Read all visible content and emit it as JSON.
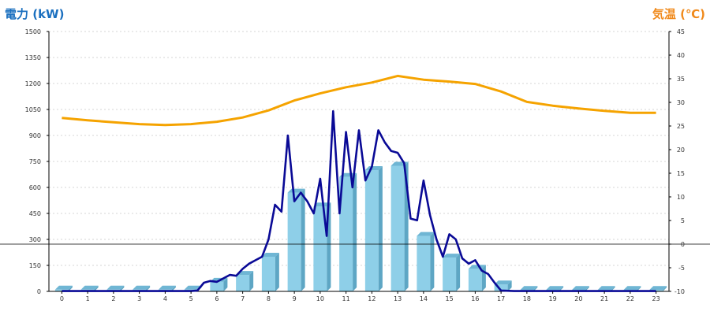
{
  "chart_data": {
    "type": "bar",
    "title": "",
    "colors": {
      "power_axis_title": "#1a6fbf",
      "temp_axis_title": "#f08a1c",
      "bar_front": "#8ecfe8",
      "bar_side": "#5ea6c4",
      "bar_top": "#6fb6d4",
      "realtime_line": "#0a0a96",
      "temperature_line": "#f5a300",
      "grid": "#c8c8c8",
      "axis": "#000000",
      "zero_line": "#000000"
    },
    "left_axis": {
      "title": "電力 (kW)",
      "min": 0,
      "max": 1500,
      "ticks": [
        "0",
        "150",
        "300",
        "450",
        "600",
        "750",
        "900",
        "1050",
        "1200",
        "1350",
        "1500"
      ]
    },
    "right_axis": {
      "title": "気温 (℃)",
      "min": -10,
      "max": 45,
      "ticks": [
        "-10",
        "-5",
        "0",
        "5",
        "10",
        "15",
        "20",
        "25",
        "30",
        "35",
        "40",
        "45"
      ]
    },
    "categories": [
      "0",
      "1",
      "2",
      "3",
      "4",
      "5",
      "6",
      "7",
      "8",
      "9",
      "10",
      "11",
      "12",
      "13",
      "14",
      "15",
      "16",
      "17",
      "18",
      "19",
      "20",
      "21",
      "22",
      "23"
    ],
    "grid": true,
    "series": [
      {
        "name": "",
        "kind": "bar",
        "axis": "left",
        "values": [
          10,
          10,
          10,
          10,
          10,
          10,
          55,
          95,
          200,
          570,
          490,
          660,
          700,
          725,
          320,
          195,
          130,
          40,
          8,
          8,
          8,
          8,
          8,
          8
        ]
      },
      {
        "name": "",
        "kind": "line",
        "axis": "left",
        "x": [
          0,
          0.5,
          1,
          1.5,
          2,
          2.5,
          3,
          3.5,
          4,
          4.5,
          5,
          5.25,
          5.5,
          5.75,
          6,
          6.25,
          6.5,
          6.75,
          7,
          7.25,
          7.5,
          7.75,
          8,
          8.25,
          8.5,
          8.75,
          9,
          9.25,
          9.5,
          9.75,
          10,
          10.25,
          10.5,
          10.75,
          11,
          11.25,
          11.5,
          11.75,
          12,
          12.25,
          12.5,
          12.75,
          13,
          13.25,
          13.5,
          13.75,
          14,
          14.25,
          14.5,
          14.75,
          15,
          15.25,
          15.5,
          15.75,
          16,
          16.25,
          16.5,
          16.75,
          17,
          17.5,
          18,
          19,
          20,
          21,
          22,
          23
        ],
        "y": [
          2,
          2,
          2,
          2,
          2,
          2,
          2,
          2,
          2,
          2,
          2,
          5,
          50,
          60,
          55,
          75,
          95,
          90,
          130,
          160,
          180,
          200,
          300,
          500,
          460,
          900,
          520,
          570,
          520,
          450,
          650,
          320,
          1040,
          450,
          920,
          600,
          930,
          640,
          720,
          930,
          860,
          810,
          800,
          740,
          420,
          410,
          640,
          440,
          300,
          200,
          330,
          300,
          190,
          160,
          180,
          120,
          100,
          50,
          5,
          2,
          2,
          2,
          2,
          2,
          2,
          2
        ]
      },
      {
        "name": "",
        "kind": "line",
        "axis": "right",
        "x": [
          0,
          1,
          2,
          3,
          4,
          5,
          6,
          7,
          8,
          9,
          10,
          11,
          12,
          13,
          14,
          15,
          16,
          17,
          18,
          19,
          20,
          21,
          22,
          23
        ],
        "y": [
          26.7,
          26.2,
          25.8,
          25.4,
          25.2,
          25.4,
          25.9,
          26.8,
          28.3,
          30.4,
          31.9,
          33.2,
          34.2,
          35.6,
          34.8,
          34.4,
          33.9,
          32.3,
          30.1,
          29.3,
          28.7,
          28.2,
          27.8,
          27.8
        ]
      }
    ]
  }
}
